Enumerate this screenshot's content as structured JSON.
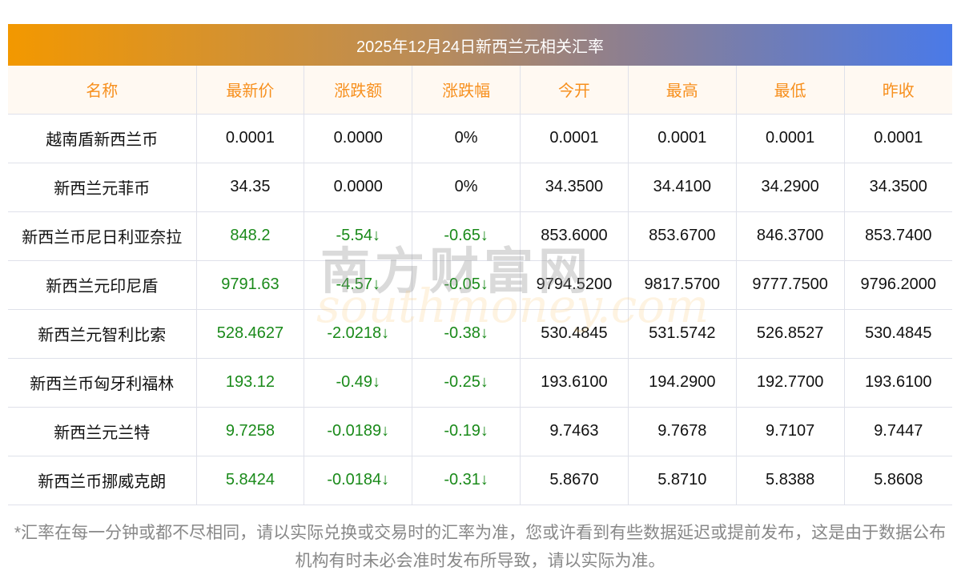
{
  "title": "2025年12月24日新西兰元相关汇率",
  "columns": [
    "名称",
    "最新价",
    "涨跌额",
    "涨跌幅",
    "今开",
    "最高",
    "最低",
    "昨收"
  ],
  "rows": [
    [
      "越南盾新西兰币",
      "0.0001",
      "0.0000",
      "0%",
      "0.0001",
      "0.0001",
      "0.0001",
      "0.0001"
    ],
    [
      "新西兰元菲币",
      "34.35",
      "0.0000",
      "0%",
      "34.3500",
      "34.4100",
      "34.2900",
      "34.3500"
    ],
    [
      "新西兰币尼日利亚奈拉",
      "848.2",
      "-5.54↓",
      "-0.65↓",
      "853.6000",
      "853.6700",
      "846.3700",
      "853.7400"
    ],
    [
      "新西兰元印尼盾",
      "9791.63",
      "-4.57↓",
      "-0.05↓",
      "9794.5200",
      "9817.5700",
      "9777.7500",
      "9796.2000"
    ],
    [
      "新西兰元智利比索",
      "528.4627",
      "-2.0218↓",
      "-0.38↓",
      "530.4845",
      "531.5742",
      "526.8527",
      "530.4845"
    ],
    [
      "新西兰币匈牙利福林",
      "193.12",
      "-0.49↓",
      "-0.25↓",
      "193.6100",
      "194.2900",
      "192.7700",
      "193.6100"
    ],
    [
      "新西兰元兰特",
      "9.7258",
      "-0.0189↓",
      "-0.19↓",
      "9.7463",
      "9.7678",
      "9.7107",
      "9.7447"
    ],
    [
      "新西兰币挪威克朗",
      "5.8424",
      "-0.0184↓",
      "-0.31↓",
      "5.8670",
      "5.8710",
      "5.8388",
      "5.8608"
    ]
  ],
  "green_rows": [
    2,
    3,
    4,
    5,
    6,
    7
  ],
  "watermark": {
    "cn": "南方财富网",
    "en": "southmoney.com"
  },
  "note": "*汇率在每一分钟或都不尽相同，请以实际兑换或交易时的汇率为准，您或许看到有些数据延迟或提前发布，这是由于数据公布机构有时未必会准时发布所导致，请以实际为准。"
}
